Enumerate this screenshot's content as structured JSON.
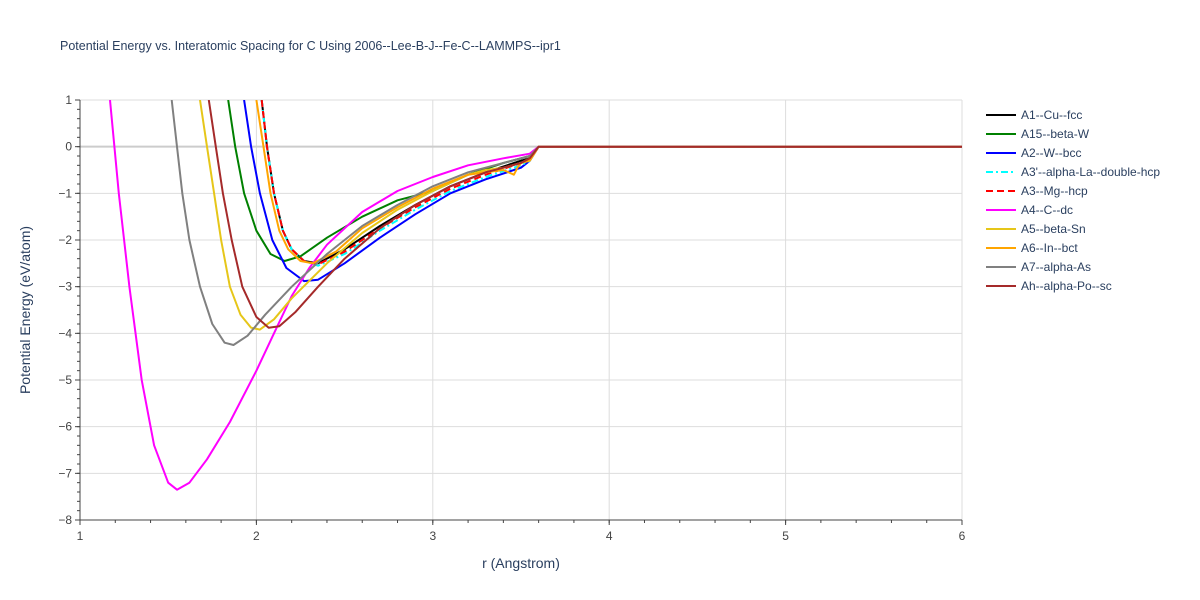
{
  "chart_data": {
    "type": "line",
    "title": "Potential Energy vs. Interatomic Spacing for C Using 2006--Lee-B-J--Fe-C--LAMMPS--ipr1",
    "xlabel": "r (Angstrom)",
    "ylabel": "Potential Energy (eV/atom)",
    "xlim": [
      1,
      6
    ],
    "ylim": [
      -8,
      1
    ],
    "xticks": [
      "1",
      "2",
      "3",
      "4",
      "5",
      "6"
    ],
    "yticks": [
      "1",
      "0",
      "−1",
      "−2",
      "−3",
      "−4",
      "−5",
      "−6",
      "−7",
      "−8"
    ],
    "grid": true,
    "legend_position": "right",
    "series": [
      {
        "name": "A1--Cu--fcc",
        "color": "#000000",
        "dash": "solid",
        "points": [
          [
            2.03,
            1.0
          ],
          [
            2.06,
            0.0
          ],
          [
            2.1,
            -1.0
          ],
          [
            2.15,
            -1.8
          ],
          [
            2.2,
            -2.2
          ],
          [
            2.27,
            -2.45
          ],
          [
            2.35,
            -2.5
          ],
          [
            2.5,
            -2.2
          ],
          [
            2.7,
            -1.7
          ],
          [
            2.9,
            -1.25
          ],
          [
            3.1,
            -0.85
          ],
          [
            3.3,
            -0.55
          ],
          [
            3.5,
            -0.3
          ],
          [
            3.55,
            -0.25
          ],
          [
            3.6,
            0.0
          ],
          [
            4.0,
            0.0
          ],
          [
            5.0,
            0.0
          ],
          [
            6.0,
            0.0
          ]
        ]
      },
      {
        "name": "A15--beta-W",
        "color": "#008000",
        "dash": "solid",
        "points": [
          [
            1.84,
            1.0
          ],
          [
            1.88,
            0.0
          ],
          [
            1.93,
            -1.0
          ],
          [
            2.0,
            -1.8
          ],
          [
            2.08,
            -2.3
          ],
          [
            2.16,
            -2.45
          ],
          [
            2.25,
            -2.35
          ],
          [
            2.4,
            -1.95
          ],
          [
            2.6,
            -1.5
          ],
          [
            2.8,
            -1.15
          ],
          [
            2.9,
            -1.05
          ],
          [
            3.0,
            -0.95
          ],
          [
            3.2,
            -0.6
          ],
          [
            3.4,
            -0.35
          ],
          [
            3.55,
            -0.2
          ],
          [
            3.6,
            0.0
          ],
          [
            4.0,
            0.0
          ],
          [
            5.0,
            0.0
          ],
          [
            6.0,
            0.0
          ]
        ]
      },
      {
        "name": "A2--W--bcc",
        "color": "#0000ff",
        "dash": "solid",
        "points": [
          [
            1.93,
            1.0
          ],
          [
            1.97,
            0.0
          ],
          [
            2.02,
            -1.0
          ],
          [
            2.09,
            -2.0
          ],
          [
            2.17,
            -2.6
          ],
          [
            2.27,
            -2.88
          ],
          [
            2.35,
            -2.85
          ],
          [
            2.5,
            -2.5
          ],
          [
            2.7,
            -1.95
          ],
          [
            2.9,
            -1.45
          ],
          [
            3.1,
            -1.0
          ],
          [
            3.3,
            -0.7
          ],
          [
            3.5,
            -0.45
          ],
          [
            3.55,
            -0.3
          ],
          [
            3.6,
            0.0
          ],
          [
            4.0,
            0.0
          ],
          [
            5.0,
            0.0
          ],
          [
            6.0,
            0.0
          ]
        ]
      },
      {
        "name": "A3'--alpha-La--double-hcp",
        "color": "#00ffff",
        "dash": "dashdot",
        "points": [
          [
            2.03,
            1.0
          ],
          [
            2.06,
            0.0
          ],
          [
            2.1,
            -1.0
          ],
          [
            2.15,
            -1.8
          ],
          [
            2.2,
            -2.2
          ],
          [
            2.27,
            -2.45
          ],
          [
            2.35,
            -2.55
          ],
          [
            2.5,
            -2.3
          ],
          [
            2.7,
            -1.8
          ],
          [
            2.9,
            -1.35
          ],
          [
            3.1,
            -0.95
          ],
          [
            3.3,
            -0.65
          ],
          [
            3.5,
            -0.4
          ],
          [
            3.55,
            -0.3
          ],
          [
            3.6,
            0.0
          ],
          [
            4.0,
            0.0
          ],
          [
            5.0,
            0.0
          ],
          [
            6.0,
            0.0
          ]
        ]
      },
      {
        "name": "A3--Mg--hcp",
        "color": "#ff0000",
        "dash": "dash",
        "points": [
          [
            2.03,
            1.0
          ],
          [
            2.06,
            0.0
          ],
          [
            2.1,
            -1.0
          ],
          [
            2.15,
            -1.8
          ],
          [
            2.2,
            -2.2
          ],
          [
            2.27,
            -2.45
          ],
          [
            2.35,
            -2.52
          ],
          [
            2.5,
            -2.25
          ],
          [
            2.7,
            -1.75
          ],
          [
            2.9,
            -1.3
          ],
          [
            3.1,
            -0.9
          ],
          [
            3.3,
            -0.6
          ],
          [
            3.5,
            -0.35
          ],
          [
            3.55,
            -0.28
          ],
          [
            3.6,
            0.0
          ],
          [
            4.0,
            0.0
          ],
          [
            5.0,
            0.0
          ],
          [
            6.0,
            0.0
          ]
        ]
      },
      {
        "name": "A4--C--dc",
        "color": "#ff00ff",
        "dash": "solid",
        "points": [
          [
            1.17,
            1.0
          ],
          [
            1.22,
            -1.0
          ],
          [
            1.28,
            -3.0
          ],
          [
            1.35,
            -5.0
          ],
          [
            1.42,
            -6.4
          ],
          [
            1.5,
            -7.2
          ],
          [
            1.55,
            -7.35
          ],
          [
            1.62,
            -7.2
          ],
          [
            1.72,
            -6.7
          ],
          [
            1.85,
            -5.9
          ],
          [
            2.0,
            -4.8
          ],
          [
            2.1,
            -4.0
          ],
          [
            2.2,
            -3.2
          ],
          [
            2.3,
            -2.6
          ],
          [
            2.4,
            -2.1
          ],
          [
            2.6,
            -1.4
          ],
          [
            2.8,
            -0.95
          ],
          [
            3.0,
            -0.65
          ],
          [
            3.2,
            -0.4
          ],
          [
            3.4,
            -0.25
          ],
          [
            3.55,
            -0.15
          ],
          [
            3.6,
            0.0
          ],
          [
            4.0,
            0.0
          ],
          [
            5.0,
            0.0
          ],
          [
            6.0,
            0.0
          ]
        ]
      },
      {
        "name": "A5--beta-Sn",
        "color": "#e6c619",
        "dash": "solid",
        "points": [
          [
            1.68,
            1.0
          ],
          [
            1.72,
            0.0
          ],
          [
            1.76,
            -1.0
          ],
          [
            1.8,
            -2.0
          ],
          [
            1.85,
            -3.0
          ],
          [
            1.91,
            -3.6
          ],
          [
            1.97,
            -3.88
          ],
          [
            2.02,
            -3.92
          ],
          [
            2.1,
            -3.7
          ],
          [
            2.2,
            -3.25
          ],
          [
            2.4,
            -2.5
          ],
          [
            2.6,
            -1.85
          ],
          [
            2.8,
            -1.35
          ],
          [
            3.0,
            -0.95
          ],
          [
            3.2,
            -0.6
          ],
          [
            3.3,
            -0.5
          ],
          [
            3.4,
            -0.45
          ],
          [
            3.5,
            -0.35
          ],
          [
            3.55,
            -0.25
          ],
          [
            3.6,
            0.0
          ],
          [
            4.0,
            0.0
          ],
          [
            5.0,
            0.0
          ],
          [
            6.0,
            0.0
          ]
        ]
      },
      {
        "name": "A6--In--bct",
        "color": "#ffa500",
        "dash": "solid",
        "points": [
          [
            2.0,
            1.0
          ],
          [
            2.04,
            0.0
          ],
          [
            2.08,
            -1.0
          ],
          [
            2.13,
            -1.8
          ],
          [
            2.18,
            -2.2
          ],
          [
            2.25,
            -2.45
          ],
          [
            2.32,
            -2.5
          ],
          [
            2.45,
            -2.25
          ],
          [
            2.6,
            -1.75
          ],
          [
            2.8,
            -1.3
          ],
          [
            3.0,
            -0.9
          ],
          [
            3.2,
            -0.6
          ],
          [
            3.3,
            -0.55
          ],
          [
            3.4,
            -0.5
          ],
          [
            3.46,
            -0.6
          ],
          [
            3.48,
            -0.45
          ],
          [
            3.5,
            -0.35
          ],
          [
            3.55,
            -0.3
          ],
          [
            3.6,
            0.0
          ],
          [
            4.0,
            0.0
          ],
          [
            5.0,
            0.0
          ],
          [
            6.0,
            0.0
          ]
        ]
      },
      {
        "name": "A7--alpha-As",
        "color": "#808080",
        "dash": "solid",
        "points": [
          [
            1.52,
            1.0
          ],
          [
            1.55,
            0.0
          ],
          [
            1.58,
            -1.0
          ],
          [
            1.62,
            -2.0
          ],
          [
            1.68,
            -3.0
          ],
          [
            1.75,
            -3.8
          ],
          [
            1.82,
            -4.2
          ],
          [
            1.87,
            -4.25
          ],
          [
            1.95,
            -4.05
          ],
          [
            2.05,
            -3.6
          ],
          [
            2.2,
            -3.0
          ],
          [
            2.4,
            -2.3
          ],
          [
            2.6,
            -1.7
          ],
          [
            2.8,
            -1.25
          ],
          [
            3.0,
            -0.85
          ],
          [
            3.2,
            -0.55
          ],
          [
            3.4,
            -0.35
          ],
          [
            3.55,
            -0.2
          ],
          [
            3.6,
            0.0
          ],
          [
            4.0,
            0.0
          ],
          [
            5.0,
            0.0
          ],
          [
            6.0,
            0.0
          ]
        ]
      },
      {
        "name": "Ah--alpha-Po--sc",
        "color": "#a52a2a",
        "dash": "solid",
        "points": [
          [
            1.73,
            1.0
          ],
          [
            1.77,
            0.0
          ],
          [
            1.81,
            -1.0
          ],
          [
            1.86,
            -2.0
          ],
          [
            1.92,
            -3.0
          ],
          [
            2.0,
            -3.65
          ],
          [
            2.07,
            -3.88
          ],
          [
            2.13,
            -3.85
          ],
          [
            2.22,
            -3.55
          ],
          [
            2.35,
            -3.0
          ],
          [
            2.5,
            -2.4
          ],
          [
            2.7,
            -1.75
          ],
          [
            2.9,
            -1.25
          ],
          [
            3.1,
            -0.85
          ],
          [
            3.3,
            -0.55
          ],
          [
            3.5,
            -0.35
          ],
          [
            3.55,
            -0.25
          ],
          [
            3.6,
            0.0
          ],
          [
            4.0,
            0.0
          ],
          [
            5.0,
            0.0
          ],
          [
            6.0,
            0.0
          ]
        ]
      }
    ]
  }
}
